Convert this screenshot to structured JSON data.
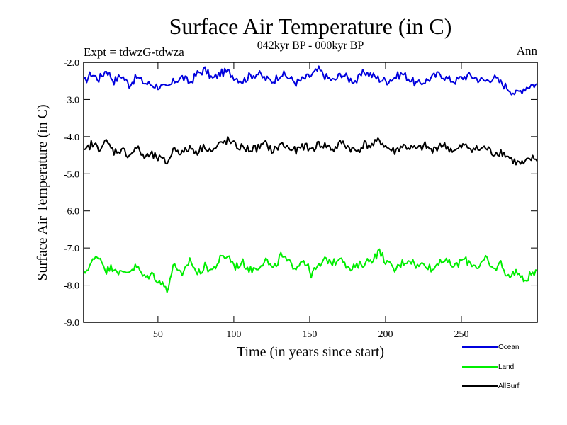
{
  "chart_data": {
    "type": "line",
    "title": "Surface Air Temperature (in C)",
    "subtitle": "042kyr BP - 000kyr BP",
    "left_note": "Expt = tdwzG-tdwza",
    "right_note": "Ann",
    "xlabel": "Time (in years since start)",
    "ylabel": "Surface Air Temperature (in C)",
    "xlim": [
      1,
      300
    ],
    "ylim": [
      -9.0,
      -2.0
    ],
    "xticks": [
      50,
      100,
      150,
      200,
      250
    ],
    "xtick_labels": [
      "50",
      "100",
      "150",
      "200",
      "250"
    ],
    "yticks": [
      -2.0,
      -3.0,
      -4.0,
      -5.0,
      -6.0,
      -7.0,
      -8.0,
      -9.0
    ],
    "ytick_labels": [
      "-2.0",
      "-3.0",
      "-4.0",
      "-5.0",
      "-6.0",
      "-7.0",
      "-8.0",
      "-9.0"
    ],
    "legend_position": "bottom-right, outside plot",
    "series": [
      {
        "name": "Ocean",
        "color": "#0000dd",
        "sample_every_years": 5,
        "values": [
          -2.55,
          -2.3,
          -2.45,
          -2.2,
          -2.5,
          -2.35,
          -2.6,
          -2.4,
          -2.55,
          -2.6,
          -2.65,
          -2.7,
          -2.5,
          -2.4,
          -2.55,
          -2.3,
          -2.2,
          -2.45,
          -2.3,
          -2.25,
          -2.4,
          -2.5,
          -2.35,
          -2.3,
          -2.45,
          -2.5,
          -2.3,
          -2.4,
          -2.55,
          -2.45,
          -2.35,
          -2.2,
          -2.4,
          -2.5,
          -2.3,
          -2.45,
          -2.5,
          -2.25,
          -2.35,
          -2.45,
          -2.5,
          -2.4,
          -2.3,
          -2.45,
          -2.6,
          -2.5,
          -2.4,
          -2.3,
          -2.45,
          -2.5,
          -2.4,
          -2.35,
          -2.45,
          -2.5,
          -2.4,
          -2.55,
          -2.7,
          -2.85,
          -2.7,
          -2.6
        ]
      },
      {
        "name": "Land",
        "color": "#00ee00",
        "sample_every_years": 5,
        "values": [
          -7.7,
          -7.4,
          -7.2,
          -7.6,
          -7.5,
          -7.7,
          -7.6,
          -7.5,
          -7.8,
          -7.7,
          -7.9,
          -8.1,
          -7.4,
          -7.8,
          -7.3,
          -7.7,
          -7.5,
          -7.6,
          -7.3,
          -7.2,
          -7.5,
          -7.4,
          -7.6,
          -7.5,
          -7.3,
          -7.6,
          -7.2,
          -7.4,
          -7.5,
          -7.3,
          -7.7,
          -7.5,
          -7.3,
          -7.4,
          -7.2,
          -7.6,
          -7.5,
          -7.4,
          -7.3,
          -7.1,
          -7.4,
          -7.6,
          -7.4,
          -7.3,
          -7.5,
          -7.4,
          -7.6,
          -7.3,
          -7.4,
          -7.5,
          -7.3,
          -7.4,
          -7.5,
          -7.3,
          -7.6,
          -7.4,
          -7.8,
          -7.6,
          -7.9,
          -7.7
        ]
      },
      {
        "name": "AllSurf",
        "color": "#000000",
        "sample_every_years": 5,
        "values": [
          -4.45,
          -4.2,
          -4.3,
          -4.15,
          -4.4,
          -4.35,
          -4.5,
          -4.3,
          -4.55,
          -4.5,
          -4.6,
          -4.7,
          -4.3,
          -4.45,
          -4.3,
          -4.4,
          -4.25,
          -4.4,
          -4.2,
          -4.1,
          -4.25,
          -4.3,
          -4.35,
          -4.3,
          -4.2,
          -4.4,
          -4.2,
          -4.3,
          -4.4,
          -4.25,
          -4.35,
          -4.2,
          -4.25,
          -4.35,
          -4.15,
          -4.3,
          -4.4,
          -4.2,
          -4.25,
          -4.1,
          -4.3,
          -4.4,
          -4.25,
          -4.3,
          -4.35,
          -4.25,
          -4.4,
          -4.2,
          -4.3,
          -4.4,
          -4.25,
          -4.3,
          -4.35,
          -4.3,
          -4.45,
          -4.4,
          -4.55,
          -4.7,
          -4.75,
          -4.6
        ]
      }
    ]
  }
}
